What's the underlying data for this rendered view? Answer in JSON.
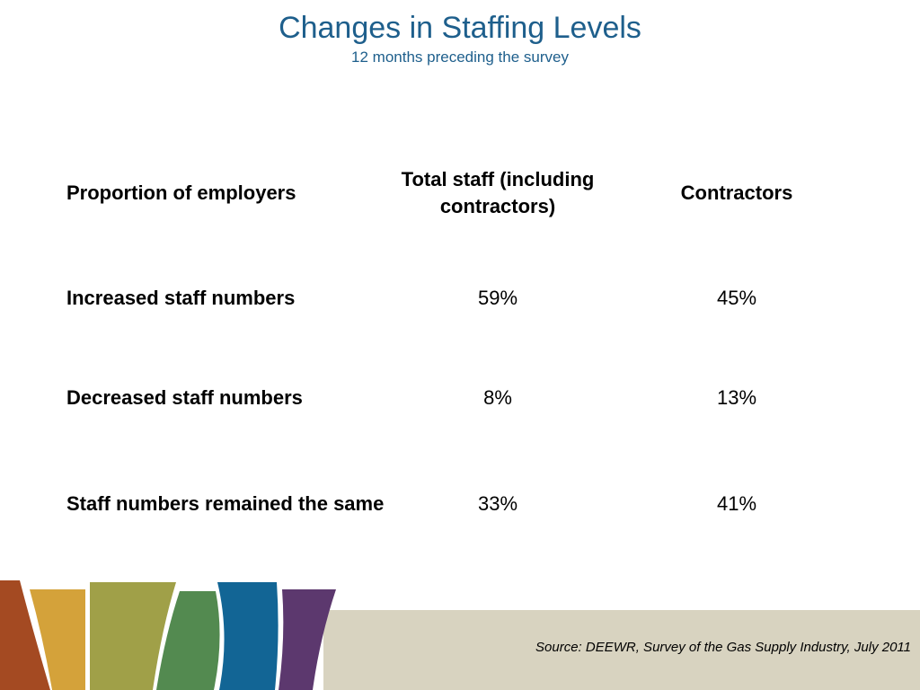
{
  "header": {
    "title": "Changes in Staffing Levels",
    "subtitle": "12 months preceding the survey"
  },
  "table": {
    "columns": [
      "Proportion of employers",
      "Total staff (including contractors)",
      "Contractors"
    ],
    "rows": [
      {
        "label": "Increased staff numbers",
        "total": "59%",
        "contractors": "45%"
      },
      {
        "label": "Decreased staff numbers",
        "total": "8%",
        "contractors": "13%"
      },
      {
        "label": "Staff numbers remained the same",
        "total": "33%",
        "contractors": "41%"
      }
    ]
  },
  "footer": {
    "source": "Source: DEEWR, Survey of the Gas Supply Industry, July 2011"
  },
  "colors": {
    "title": "#1e5f8c",
    "band": "#d8d3c0",
    "stripes": [
      "#a44a22",
      "#d4a23a",
      "#a0a048",
      "#538a50",
      "#126595",
      "#5c386e"
    ]
  }
}
